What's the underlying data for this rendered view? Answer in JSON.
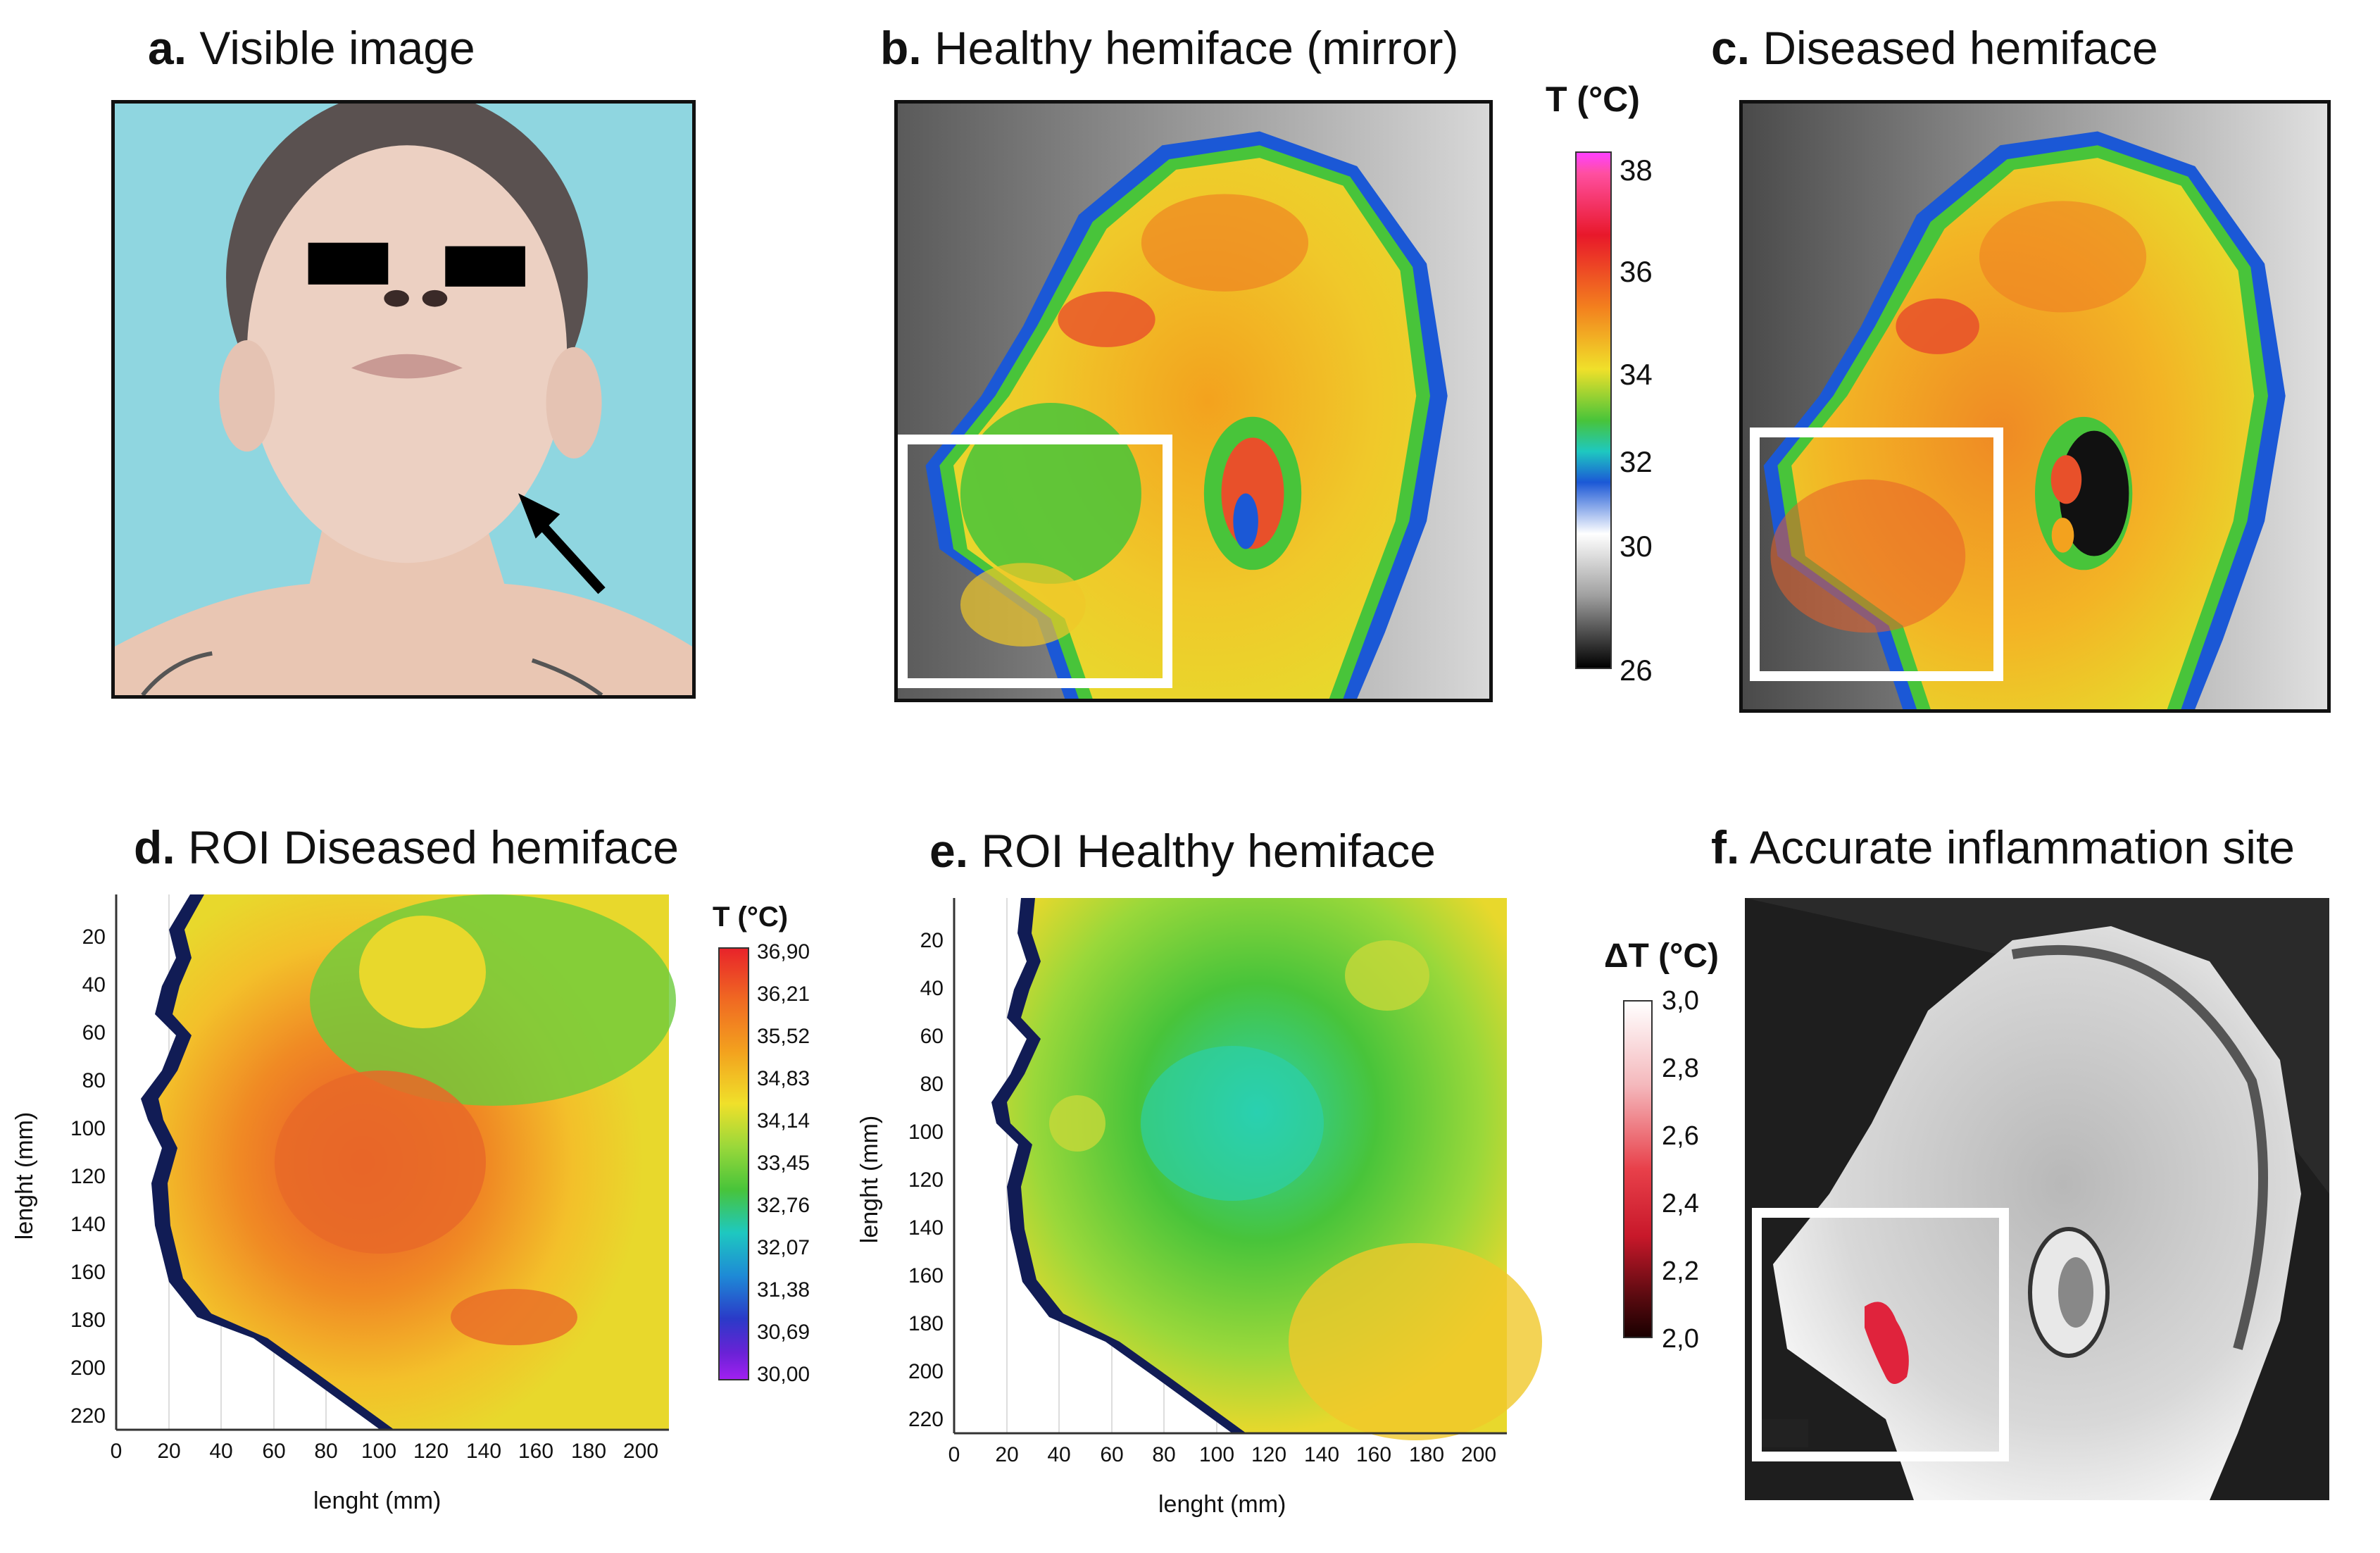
{
  "panels": {
    "a": {
      "letter": "a.",
      "title": "Visible image"
    },
    "b": {
      "letter": "b.",
      "title": "Healthy hemiface (mirror)"
    },
    "c": {
      "letter": "c.",
      "title": "Diseased hemiface"
    },
    "d": {
      "letter": "d.",
      "title": "ROI Diseased hemiface"
    },
    "e": {
      "letter": "e.",
      "title": "ROI Healthy hemiface"
    },
    "f": {
      "letter": "f.",
      "title": "Accurate inflammation site"
    }
  },
  "colorbar_thermal": {
    "title": "T (°C)",
    "labels": [
      "38",
      "36",
      "34",
      "32",
      "30",
      "26"
    ]
  },
  "colorbar_roi": {
    "title": "T (°C)",
    "labels": [
      "36,90",
      "36,21",
      "35,52",
      "34,83",
      "34,14",
      "33,45",
      "32,76",
      "32,07",
      "31,38",
      "30,69",
      "30,00"
    ]
  },
  "colorbar_delta": {
    "title": "ΔT (°C)",
    "labels": [
      "3,0",
      "2,8",
      "2,6",
      "2,4",
      "2,2",
      "2,0"
    ]
  },
  "roi_axes": {
    "xlabel": "lenght (mm)",
    "ylabel": "lenght (mm)",
    "xticks": [
      "0",
      "20",
      "40",
      "60",
      "80",
      "100",
      "120",
      "140",
      "160",
      "180",
      "200"
    ],
    "yticks": [
      "20",
      "40",
      "60",
      "80",
      "100",
      "120",
      "140",
      "160",
      "180",
      "200",
      "220"
    ]
  },
  "colors": {
    "background_a": "#8fd6e0",
    "thermal_hot": "#e8502a",
    "thermal_warm": "#f3a21e",
    "thermal_mid": "#f0d82a",
    "thermal_cool": "#48c43a",
    "thermal_cold": "#1b58d6",
    "marker_red": "#e0233c"
  }
}
